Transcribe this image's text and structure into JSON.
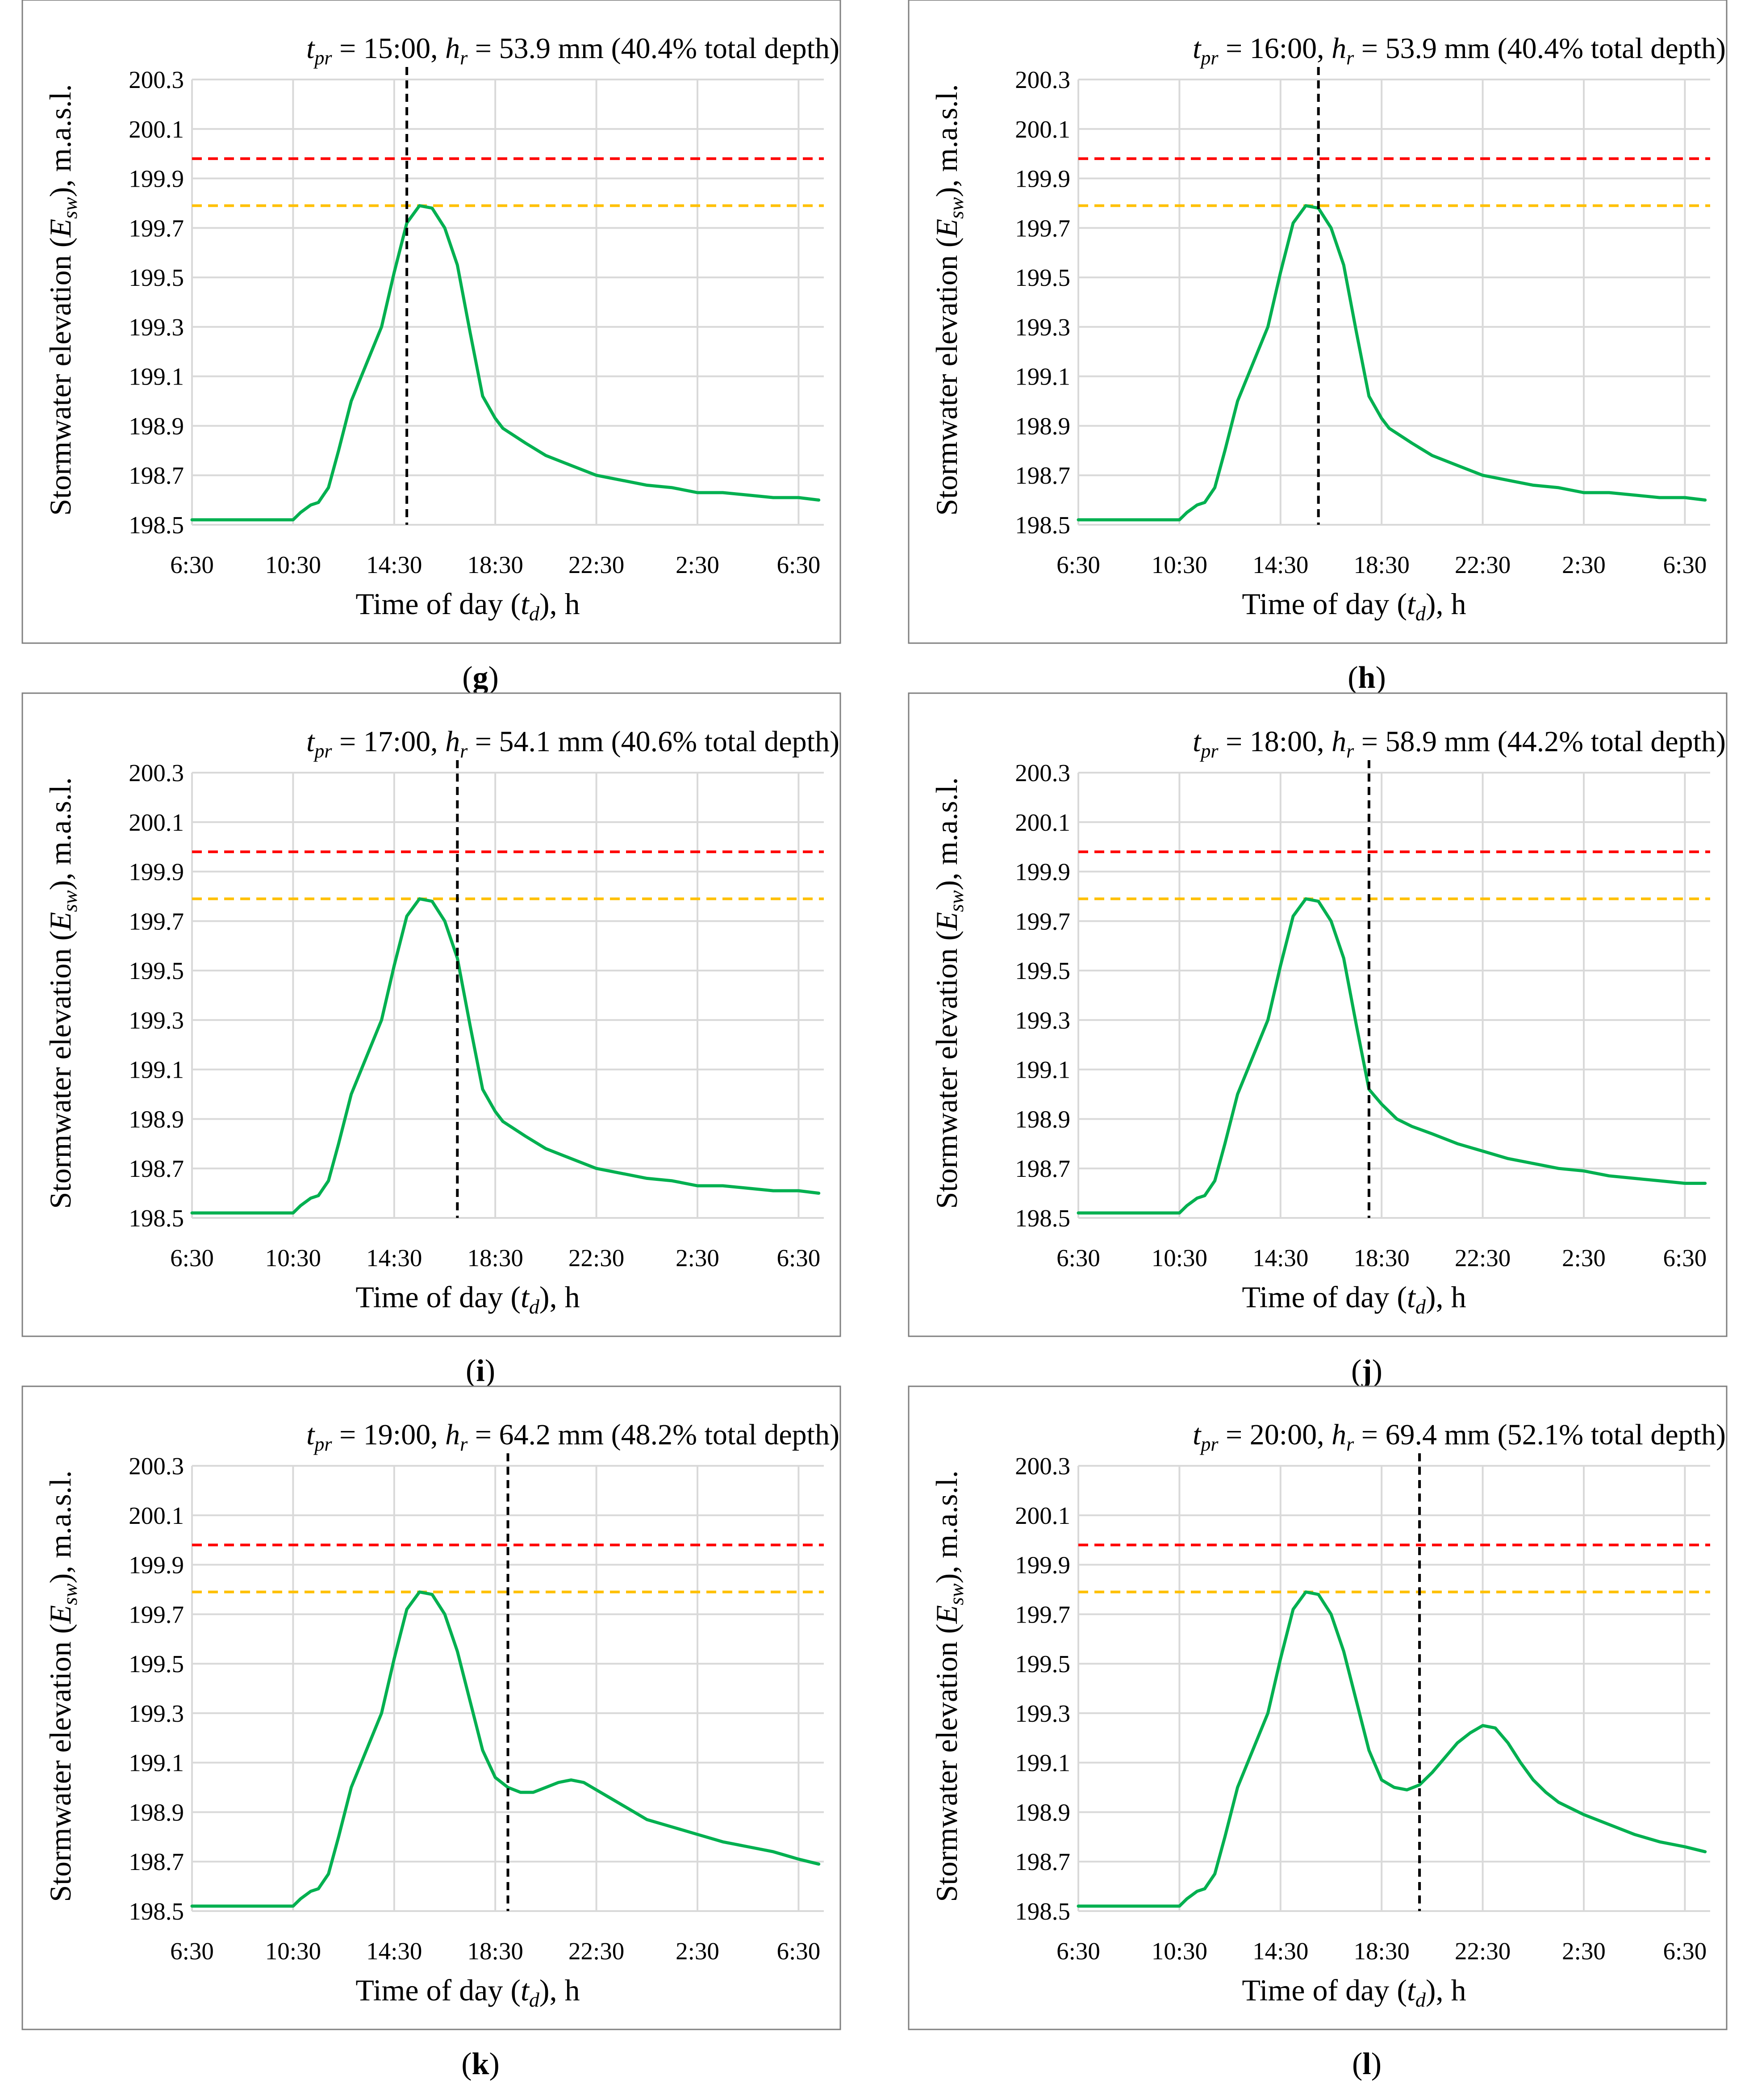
{
  "common": {
    "y_ticks": [
      "200.3",
      "200.1",
      "199.9",
      "199.7",
      "199.5",
      "199.3",
      "199.1",
      "198.9",
      "198.7",
      "198.5"
    ],
    "x_ticks": [
      "6:30",
      "10:30",
      "14:30",
      "18:30",
      "22:30",
      "2:30",
      "6:30"
    ],
    "ylabel_text": "Stormwater elevation (",
    "ylabel_var": "E",
    "ylabel_sub": "sw",
    "ylabel_unit": "), m.a.s.l.",
    "xlabel_text": "Time of day (",
    "xlabel_var": "t",
    "xlabel_sub": "d",
    "xlabel_unit": "), h",
    "title_var1": "t",
    "title_sub1": "pr",
    "title_var2": "h",
    "title_sub2": "r",
    "colors": {
      "series": "#00b050",
      "red_line": "#ff0000",
      "yellow_line": "#ffc000",
      "vline": "#000000",
      "grid": "#d9d9d9",
      "frame": "#7f7f7f"
    }
  },
  "chart_data": [
    {
      "type": "line",
      "label": "g",
      "title_eq1": " = 15:00, ",
      "title_eq2": " = 53.9 mm (40.4% total depth)",
      "xlabel": "Time of day (td), h",
      "ylabel": "Stormwater elevation (Esw), m.a.s.l.",
      "x_unit": "hours after 6:30",
      "xlim": [
        0,
        25
      ],
      "ylim": [
        198.5,
        200.3
      ],
      "red_threshold": 199.98,
      "yellow_threshold": 199.79,
      "vline_x": 8.5,
      "series": [
        {
          "name": "Esw",
          "x": [
            0,
            4,
            4.3,
            4.7,
            5.0,
            5.4,
            5.8,
            6.3,
            6.9,
            7.5,
            8.0,
            8.5,
            9.0,
            9.5,
            10.0,
            10.5,
            11.0,
            11.5,
            12.0,
            12.3,
            12.6,
            13.2,
            14.0,
            15.0,
            16.0,
            17.0,
            18.0,
            19.0,
            20.0,
            21.0,
            22.0,
            23.0,
            24.0,
            24.8
          ],
          "y": [
            198.52,
            198.52,
            198.55,
            198.58,
            198.59,
            198.65,
            198.8,
            199.0,
            199.15,
            199.3,
            199.52,
            199.72,
            199.79,
            199.78,
            199.7,
            199.55,
            199.28,
            199.02,
            198.93,
            198.89,
            198.87,
            198.83,
            198.78,
            198.74,
            198.7,
            198.68,
            198.66,
            198.65,
            198.63,
            198.63,
            198.62,
            198.61,
            198.61,
            198.6
          ]
        }
      ]
    },
    {
      "type": "line",
      "label": "h",
      "title_eq1": " = 16:00, ",
      "title_eq2": " = 53.9 mm (40.4% total depth)",
      "xlabel": "Time of day (td), h",
      "ylabel": "Stormwater elevation (Esw), m.a.s.l.",
      "x_unit": "hours after 6:30",
      "xlim": [
        0,
        25
      ],
      "ylim": [
        198.5,
        200.3
      ],
      "red_threshold": 199.98,
      "yellow_threshold": 199.79,
      "vline_x": 9.5,
      "series": [
        {
          "name": "Esw",
          "x": [
            0,
            4,
            4.3,
            4.7,
            5.0,
            5.4,
            5.8,
            6.3,
            6.9,
            7.5,
            8.0,
            8.5,
            9.0,
            9.5,
            10.0,
            10.5,
            11.0,
            11.5,
            12.0,
            12.3,
            12.6,
            13.2,
            14.0,
            15.0,
            16.0,
            17.0,
            18.0,
            19.0,
            20.0,
            21.0,
            22.0,
            23.0,
            24.0,
            24.8
          ],
          "y": [
            198.52,
            198.52,
            198.55,
            198.58,
            198.59,
            198.65,
            198.8,
            199.0,
            199.15,
            199.3,
            199.52,
            199.72,
            199.79,
            199.78,
            199.7,
            199.55,
            199.28,
            199.02,
            198.93,
            198.89,
            198.87,
            198.83,
            198.78,
            198.74,
            198.7,
            198.68,
            198.66,
            198.65,
            198.63,
            198.63,
            198.62,
            198.61,
            198.61,
            198.6
          ]
        }
      ]
    },
    {
      "type": "line",
      "label": "i",
      "title_eq1": " = 17:00, ",
      "title_eq2": " = 54.1 mm (40.6% total depth)",
      "xlabel": "Time of day (td), h",
      "ylabel": "Stormwater elevation (Esw), m.a.s.l.",
      "x_unit": "hours after 6:30",
      "xlim": [
        0,
        25
      ],
      "ylim": [
        198.5,
        200.3
      ],
      "red_threshold": 199.98,
      "yellow_threshold": 199.79,
      "vline_x": 10.5,
      "series": [
        {
          "name": "Esw",
          "x": [
            0,
            4,
            4.3,
            4.7,
            5.0,
            5.4,
            5.8,
            6.3,
            6.9,
            7.5,
            8.0,
            8.5,
            9.0,
            9.5,
            10.0,
            10.5,
            11.0,
            11.5,
            12.0,
            12.3,
            12.6,
            13.2,
            14.0,
            15.0,
            16.0,
            17.0,
            18.0,
            19.0,
            20.0,
            21.0,
            22.0,
            23.0,
            24.0,
            24.8
          ],
          "y": [
            198.52,
            198.52,
            198.55,
            198.58,
            198.59,
            198.65,
            198.8,
            199.0,
            199.15,
            199.3,
            199.52,
            199.72,
            199.79,
            199.78,
            199.7,
            199.55,
            199.28,
            199.02,
            198.93,
            198.89,
            198.87,
            198.83,
            198.78,
            198.74,
            198.7,
            198.68,
            198.66,
            198.65,
            198.63,
            198.63,
            198.62,
            198.61,
            198.61,
            198.6
          ]
        }
      ]
    },
    {
      "type": "line",
      "label": "j",
      "title_eq1": " = 18:00, ",
      "title_eq2": " = 58.9 mm (44.2% total depth)",
      "xlabel": "Time of day (td), h",
      "ylabel": "Stormwater elevation (Esw), m.a.s.l.",
      "x_unit": "hours after 6:30",
      "xlim": [
        0,
        25
      ],
      "ylim": [
        198.5,
        200.3
      ],
      "red_threshold": 199.98,
      "yellow_threshold": 199.79,
      "vline_x": 11.5,
      "series": [
        {
          "name": "Esw",
          "x": [
            0,
            4,
            4.3,
            4.7,
            5.0,
            5.4,
            5.8,
            6.3,
            6.9,
            7.5,
            8.0,
            8.5,
            9.0,
            9.5,
            10.0,
            10.5,
            11.0,
            11.5,
            12.0,
            12.3,
            12.6,
            13.2,
            14.0,
            15.0,
            16.0,
            17.0,
            18.0,
            19.0,
            20.0,
            21.0,
            22.0,
            23.0,
            24.0,
            24.8
          ],
          "y": [
            198.52,
            198.52,
            198.55,
            198.58,
            198.59,
            198.65,
            198.8,
            199.0,
            199.15,
            199.3,
            199.52,
            199.72,
            199.79,
            199.78,
            199.7,
            199.55,
            199.28,
            199.02,
            198.96,
            198.93,
            198.9,
            198.87,
            198.84,
            198.8,
            198.77,
            198.74,
            198.72,
            198.7,
            198.69,
            198.67,
            198.66,
            198.65,
            198.64,
            198.64
          ]
        }
      ]
    },
    {
      "type": "line",
      "label": "k",
      "title_eq1": " = 19:00, ",
      "title_eq2": " = 64.2 mm (48.2% total depth)",
      "xlabel": "Time of day (td), h",
      "ylabel": "Stormwater elevation (Esw), m.a.s.l.",
      "x_unit": "hours after 6:30",
      "xlim": [
        0,
        25
      ],
      "ylim": [
        198.5,
        200.3
      ],
      "red_threshold": 199.98,
      "yellow_threshold": 199.79,
      "vline_x": 12.5,
      "series": [
        {
          "name": "Esw",
          "x": [
            0,
            4,
            4.3,
            4.7,
            5.0,
            5.4,
            5.8,
            6.3,
            6.9,
            7.5,
            8.0,
            8.5,
            9.0,
            9.5,
            10.0,
            10.5,
            11.0,
            11.5,
            12.0,
            12.5,
            13.0,
            13.5,
            14.0,
            14.5,
            15.0,
            15.5,
            16.0,
            16.5,
            17.0,
            17.5,
            18.0,
            19.0,
            20.0,
            21.0,
            22.0,
            23.0,
            24.0,
            24.8
          ],
          "y": [
            198.52,
            198.52,
            198.55,
            198.58,
            198.59,
            198.65,
            198.8,
            199.0,
            199.15,
            199.3,
            199.52,
            199.72,
            199.79,
            199.78,
            199.7,
            199.55,
            199.35,
            199.15,
            199.04,
            199.0,
            198.98,
            198.98,
            199.0,
            199.02,
            199.03,
            199.02,
            198.99,
            198.96,
            198.93,
            198.9,
            198.87,
            198.84,
            198.81,
            198.78,
            198.76,
            198.74,
            198.71,
            198.69
          ]
        }
      ]
    },
    {
      "type": "line",
      "label": "l",
      "title_eq1": " = 20:00, ",
      "title_eq2": " = 69.4 mm (52.1% total depth)",
      "xlabel": "Time of day (td), h",
      "ylabel": "Stormwater elevation (Esw), m.a.s.l.",
      "x_unit": "hours after 6:30",
      "xlim": [
        0,
        25
      ],
      "ylim": [
        198.5,
        200.3
      ],
      "red_threshold": 199.98,
      "yellow_threshold": 199.79,
      "vline_x": 13.5,
      "series": [
        {
          "name": "Esw",
          "x": [
            0,
            4,
            4.3,
            4.7,
            5.0,
            5.4,
            5.8,
            6.3,
            6.9,
            7.5,
            8.0,
            8.5,
            9.0,
            9.5,
            10.0,
            10.5,
            11.0,
            11.5,
            12.0,
            12.5,
            13.0,
            13.5,
            14.0,
            14.5,
            15.0,
            15.5,
            16.0,
            16.5,
            17.0,
            17.5,
            18.0,
            18.5,
            19.0,
            20.0,
            21.0,
            22.0,
            23.0,
            24.0,
            24.8
          ],
          "y": [
            198.52,
            198.52,
            198.55,
            198.58,
            198.59,
            198.65,
            198.8,
            199.0,
            199.15,
            199.3,
            199.52,
            199.72,
            199.79,
            199.78,
            199.7,
            199.55,
            199.35,
            199.15,
            199.03,
            199.0,
            198.99,
            199.01,
            199.06,
            199.12,
            199.18,
            199.22,
            199.25,
            199.24,
            199.18,
            199.1,
            199.03,
            198.98,
            198.94,
            198.89,
            198.85,
            198.81,
            198.78,
            198.76,
            198.74
          ]
        }
      ]
    }
  ]
}
